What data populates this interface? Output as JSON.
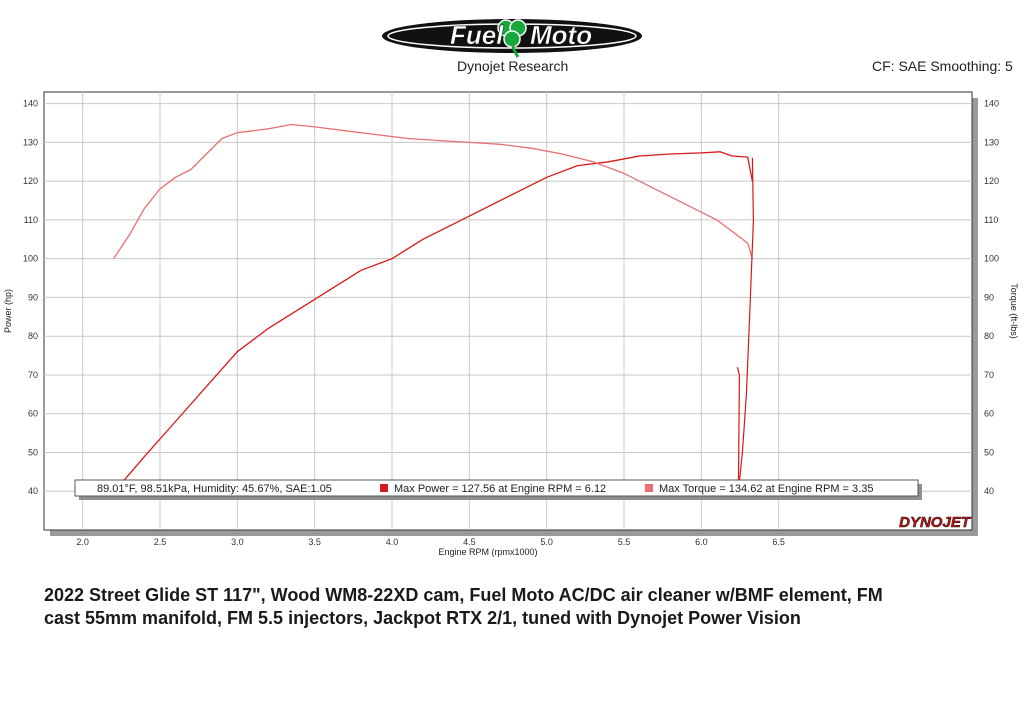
{
  "header": {
    "logo_text": "Fuel Moto",
    "subtitle": "Dynojet Research",
    "cf_info": "CF: SAE Smoothing: 5"
  },
  "colors": {
    "power_line": "#d81818",
    "torque_line": "#e87070",
    "grid": "#c8c8c8",
    "plot_border": "#333333"
  },
  "chart_data": {
    "type": "line",
    "xlabel": "Engine RPM (rpmx1000)",
    "ylabel": "Power (hp)",
    "y2label": "Torque (ft-lbs)",
    "xlim": [
      1.75,
      7.75
    ],
    "ylim": [
      30,
      143
    ],
    "xticks": [
      "2.0",
      "2.5",
      "3.0",
      "3.5",
      "4.0",
      "4.5",
      "5.0",
      "5.5",
      "6.0",
      "6.5"
    ],
    "yticks": [
      "40",
      "50",
      "60",
      "70",
      "80",
      "90",
      "100",
      "110",
      "120",
      "130",
      "140"
    ],
    "grid": true,
    "info_box": {
      "conditions": "89.01°F, 98.51kPa, Humidity: 45.67%, SAE:1.05",
      "max_power": "Max Power = 127.56 at Engine RPM = 6.12",
      "max_torque": "Max Torque = 134.62 at Engine RPM = 3.35"
    },
    "brand": "DYNOJET",
    "series": [
      {
        "name": "Power",
        "x": [
          2.25,
          2.4,
          2.6,
          2.8,
          3.0,
          3.2,
          3.4,
          3.6,
          3.8,
          4.0,
          4.2,
          4.4,
          4.6,
          4.8,
          5.0,
          5.2,
          5.4,
          5.6,
          5.8,
          6.0,
          6.12,
          6.2,
          6.3,
          6.33
        ],
        "y": [
          42,
          49,
          58,
          67,
          76,
          82,
          87,
          92,
          97,
          100,
          105,
          109,
          113,
          117,
          121,
          124,
          125,
          126.5,
          127,
          127.3,
          127.56,
          126.5,
          126.2,
          120
        ]
      },
      {
        "name": "Torque",
        "x": [
          2.2,
          2.3,
          2.4,
          2.5,
          2.6,
          2.7,
          2.8,
          2.9,
          3.0,
          3.1,
          3.2,
          3.35,
          3.5,
          3.7,
          3.9,
          4.1,
          4.3,
          4.5,
          4.7,
          4.9,
          5.1,
          5.3,
          5.5,
          5.7,
          5.9,
          6.1,
          6.2,
          6.3,
          6.33
        ],
        "y": [
          100,
          106,
          113,
          118,
          121,
          123,
          127,
          131,
          132.5,
          133,
          133.5,
          134.62,
          134,
          133,
          132,
          131,
          130.5,
          130,
          129.5,
          128.5,
          127,
          125,
          122,
          118,
          114,
          110,
          107,
          104,
          100
        ]
      }
    ]
  },
  "caption": {
    "line1": "2022 Street Glide ST 117\", Wood WM8-22XD cam, Fuel Moto AC/DC air cleaner w/BMF element, FM",
    "line2": "cast 55mm manifold, FM 5.5 injectors, Jackpot RTX 2/1, tuned with Dynojet Power Vision"
  }
}
